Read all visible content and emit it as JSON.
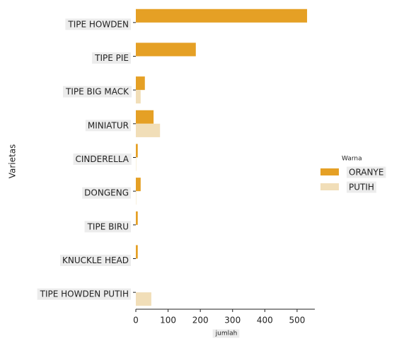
{
  "chart_data": {
    "type": "bar",
    "orientation": "horizontal",
    "categories": [
      "TIPE HOWDEN",
      "TIPE PIE",
      "TIPE BIG MACK",
      "MINIATUR",
      "CINDERELLA",
      "DONGENG",
      "TIPE BIRU",
      "KNUCKLE HEAD",
      "TIPE HOWDEN PUTIH"
    ],
    "series": [
      {
        "name": "ORANYE",
        "color": "#e5a025",
        "values": [
          531,
          186,
          28,
          55,
          6,
          15,
          6,
          6,
          0
        ]
      },
      {
        "name": "PUTIH",
        "color": "#f1deb8",
        "values": [
          0,
          0,
          15,
          75,
          1,
          1,
          0,
          0,
          48
        ]
      }
    ],
    "xlim": [
      0,
      555
    ],
    "xticks": [
      0,
      100,
      200,
      300,
      400,
      500
    ],
    "x_label": "jumlah",
    "y_label": "Varietas",
    "legend_title": "Warna",
    "legend": "right"
  }
}
